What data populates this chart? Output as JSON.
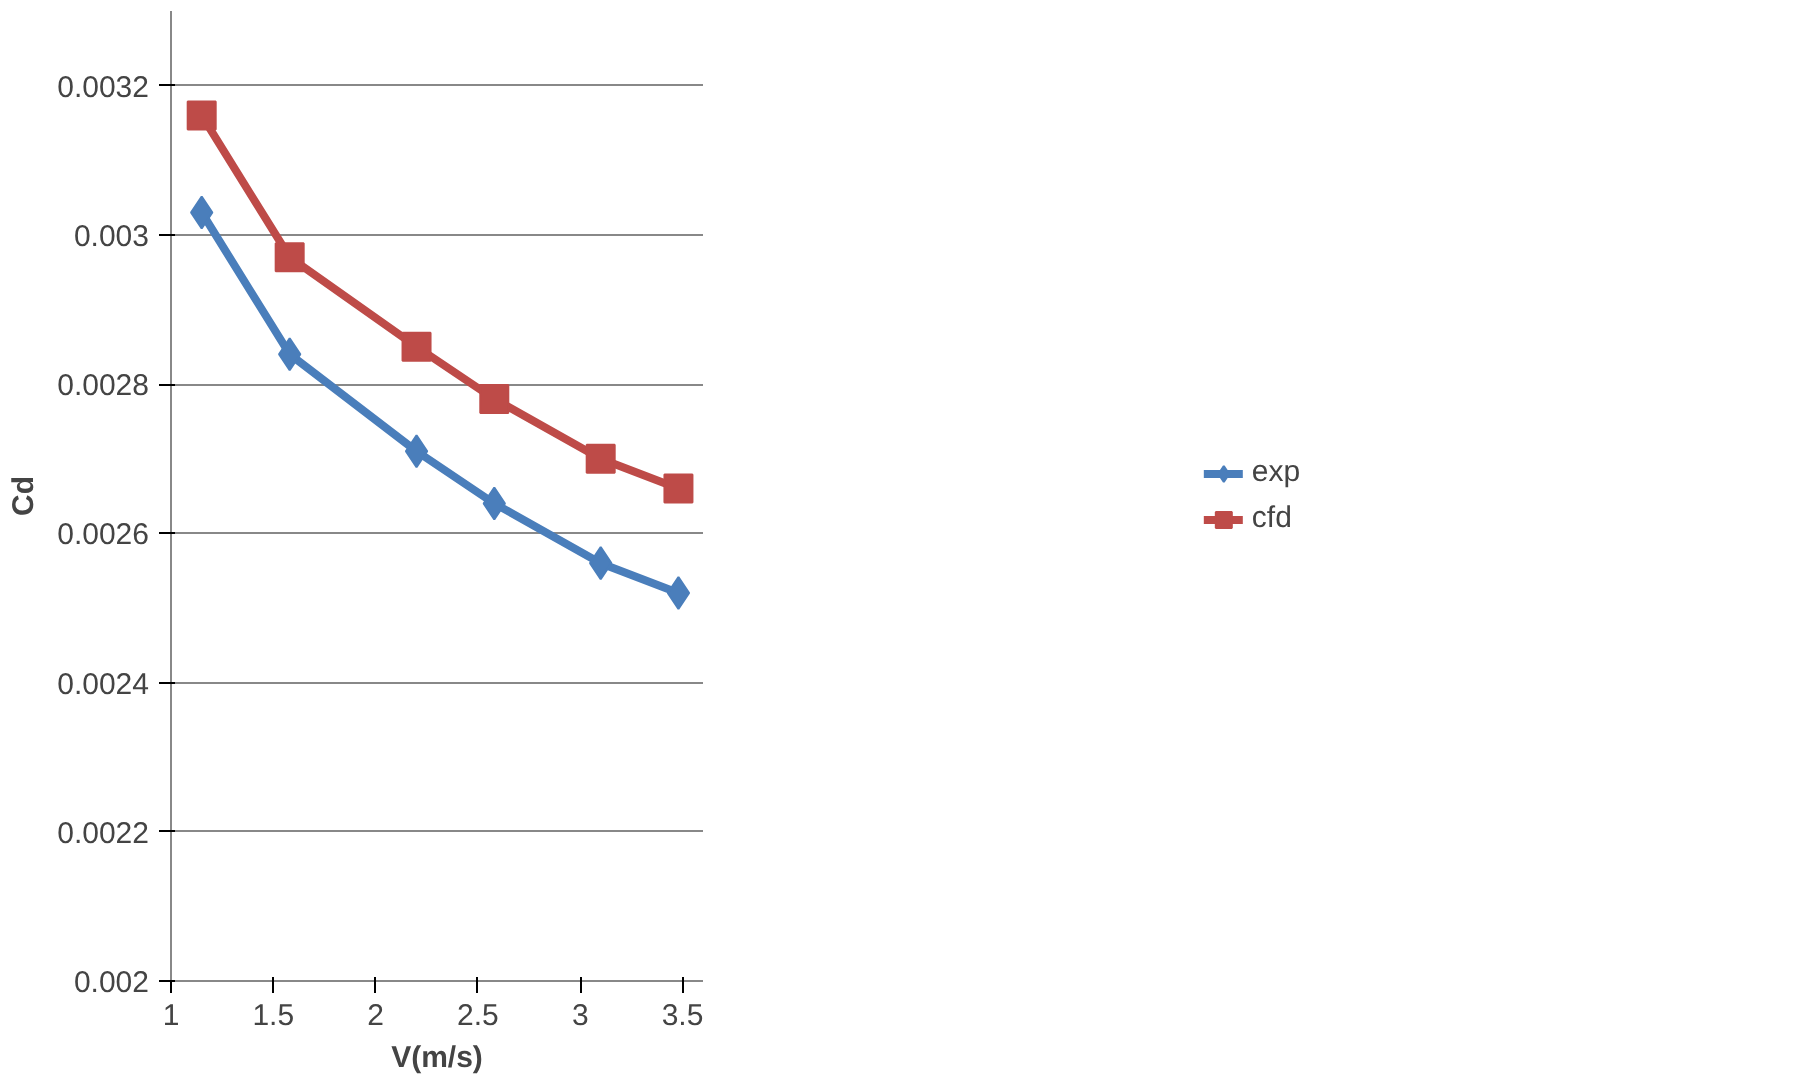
{
  "chart_data": {
    "type": "line",
    "xlabel": "V(m/s)",
    "ylabel": "Cd",
    "x": [
      1.15,
      1.58,
      2.2,
      2.58,
      3.1,
      3.48
    ],
    "series": [
      {
        "name": "exp",
        "color": "#4a7ebb",
        "marker": "diamond",
        "values": [
          0.00303,
          0.00284,
          0.00271,
          0.00264,
          0.00256,
          0.00252
        ]
      },
      {
        "name": "cfd",
        "color": "#be4b48",
        "marker": "square",
        "values": [
          0.00316,
          0.00297,
          0.00285,
          0.00278,
          0.0027,
          0.00266
        ]
      }
    ],
    "xlim": [
      1,
      3.6
    ],
    "xticks": [
      1,
      1.5,
      2,
      2.5,
      3,
      3.5
    ],
    "ylim": [
      0.002,
      0.0033
    ],
    "yticks": [
      0.002,
      0.0022,
      0.0024,
      0.0026,
      0.0028,
      0.003,
      0.0032
    ],
    "grid": "y",
    "legend": "right",
    "line_style": "solid"
  }
}
